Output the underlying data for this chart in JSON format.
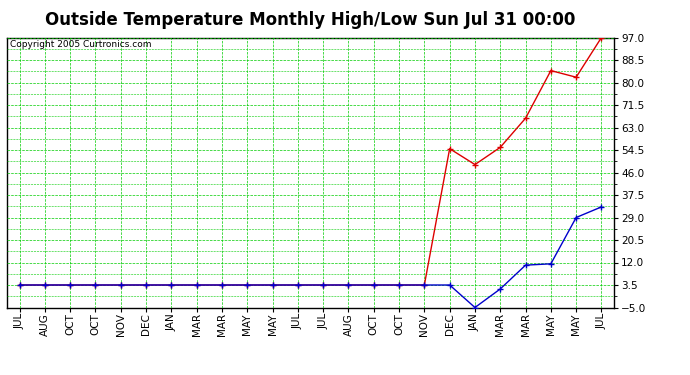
{
  "title": "Outside Temperature Monthly High/Low Sun Jul 31 00:00",
  "copyright": "Copyright 2005 Curtronics.com",
  "x_labels": [
    "JUL",
    "AUG",
    "OCT",
    "OCT",
    "NOV",
    "DEC",
    "JAN",
    "MAR",
    "MAR",
    "MAY",
    "MAY",
    "JUL",
    "JUL",
    "AUG",
    "OCT",
    "OCT",
    "NOV",
    "DEC",
    "JAN",
    "MAR",
    "MAR",
    "MAY",
    "MAY",
    "JUL"
  ],
  "y_ticks": [
    -5.0,
    3.5,
    12.0,
    20.5,
    29.0,
    37.5,
    46.0,
    54.5,
    63.0,
    71.5,
    80.0,
    88.5,
    97.0
  ],
  "y_min": -5.0,
  "y_max": 97.0,
  "high_data": [
    3.5,
    3.5,
    3.5,
    3.5,
    3.5,
    3.5,
    3.5,
    3.5,
    3.5,
    3.5,
    3.5,
    3.5,
    3.5,
    3.5,
    3.5,
    3.5,
    3.5,
    55.0,
    49.0,
    55.5,
    66.5,
    84.5,
    82.0,
    97.0
  ],
  "low_data": [
    3.5,
    3.5,
    3.5,
    3.5,
    3.5,
    3.5,
    3.5,
    3.5,
    3.5,
    3.5,
    3.5,
    3.5,
    3.5,
    3.5,
    3.5,
    3.5,
    3.5,
    3.5,
    -5.0,
    2.0,
    11.0,
    11.5,
    29.0,
    33.0
  ],
  "high_color": "#dd0000",
  "low_color": "#0000cc",
  "bg_color": "#ffffff",
  "grid_color": "#00cc00",
  "title_fontsize": 12,
  "label_fontsize": 7.5,
  "copyright_fontsize": 6.5
}
